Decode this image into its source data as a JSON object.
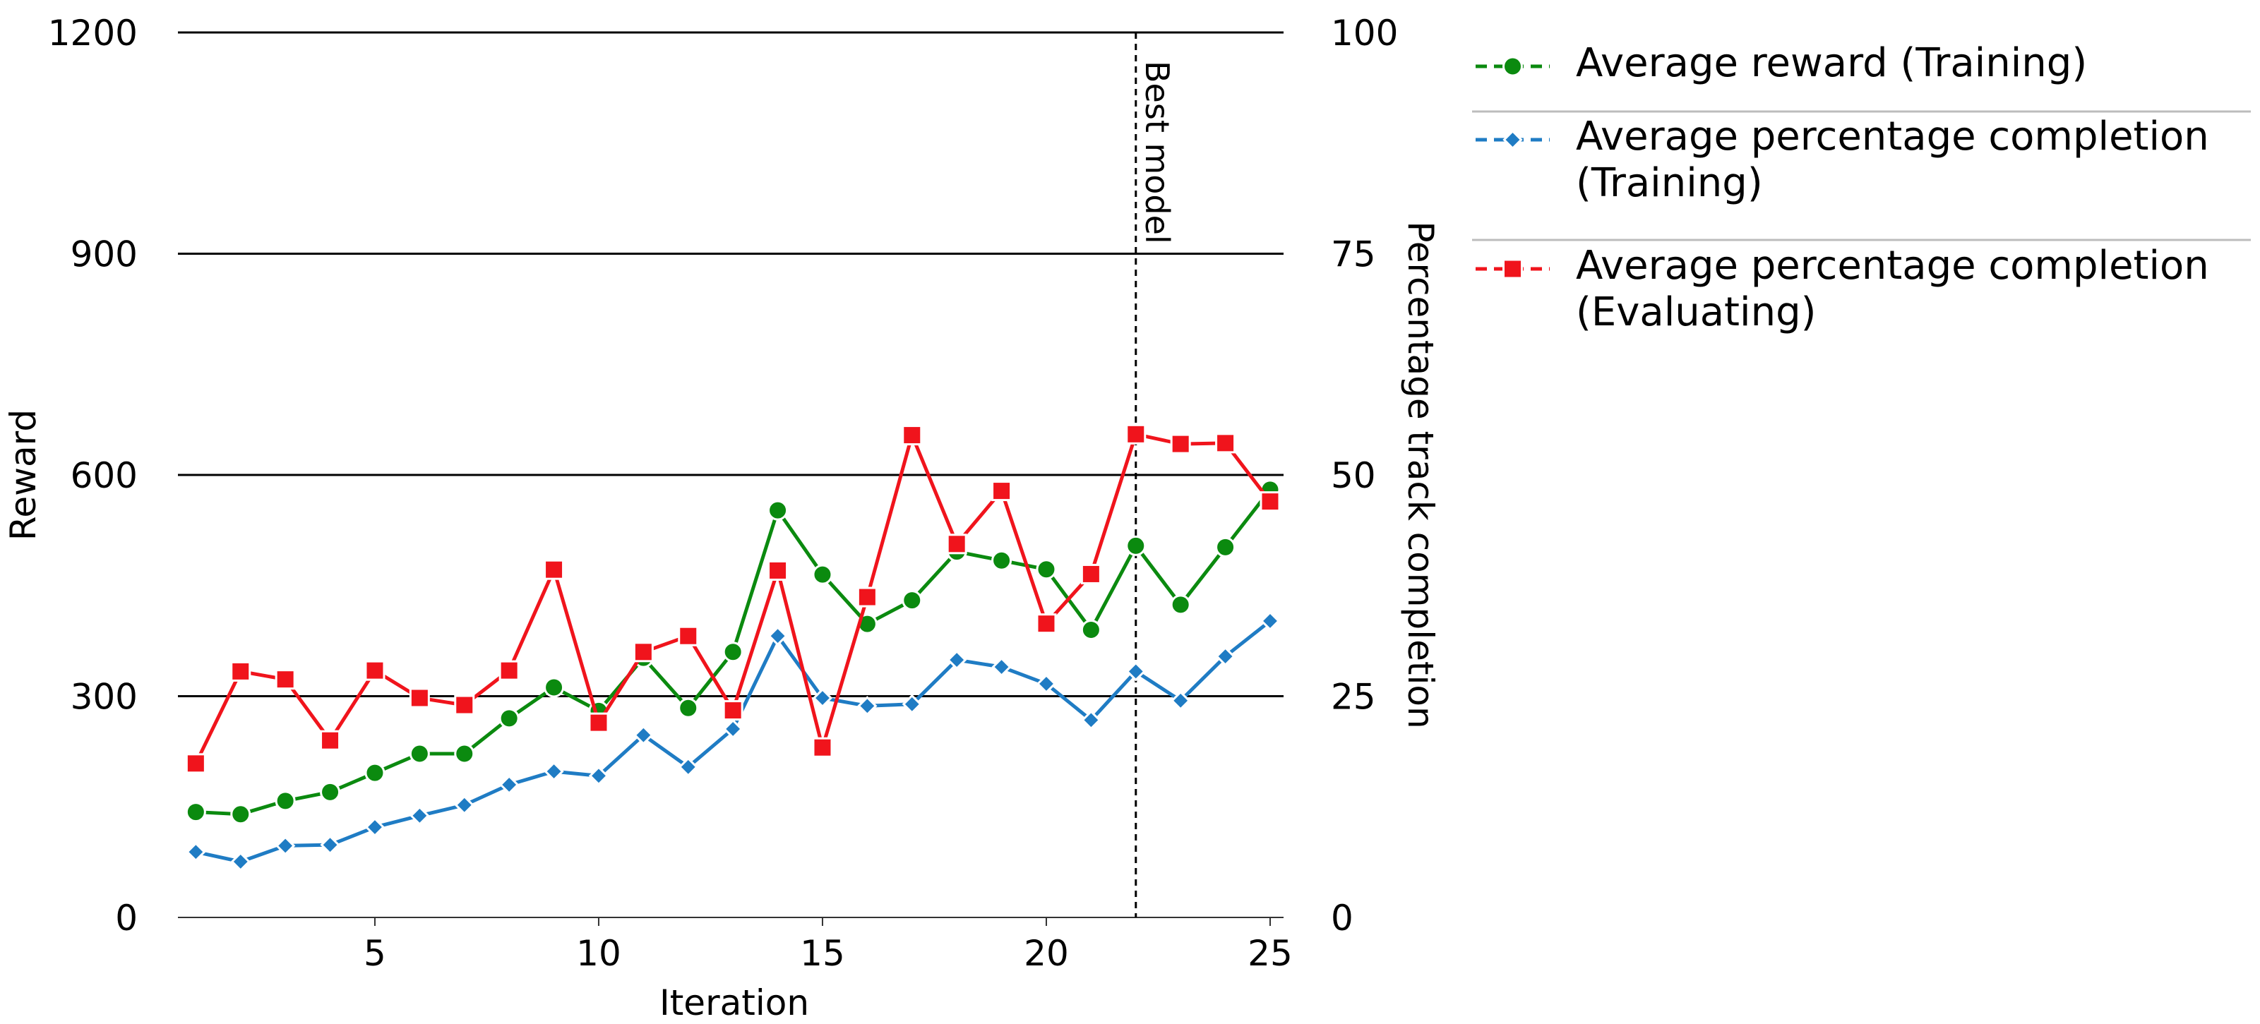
{
  "chart_data": {
    "type": "line",
    "title": "",
    "xlabel": "Iteration",
    "ylabel": "Reward",
    "y2label": "Percentage track completion",
    "xlim": [
      0.6,
      25.3
    ],
    "ylim": [
      0,
      1200
    ],
    "y2lim": [
      0,
      100
    ],
    "xticks": [
      5,
      10,
      15,
      20,
      25
    ],
    "yticks": [
      0,
      300,
      600,
      900,
      1200
    ],
    "y2ticks": [
      0,
      25,
      50,
      75,
      100
    ],
    "grid": "horizontal",
    "legend_position": "right",
    "x": [
      1,
      2,
      3,
      4,
      5,
      6,
      7,
      8,
      9,
      10,
      11,
      12,
      13,
      14,
      15,
      16,
      17,
      18,
      19,
      20,
      21,
      22,
      23,
      24,
      25
    ],
    "series": [
      {
        "name": "Average reward (Training)",
        "axis": "left",
        "color": "#0b8a0f",
        "marker": "circle",
        "values": [
          143,
          140,
          158,
          170,
          196,
          222,
          222,
          270,
          312,
          280,
          352,
          284,
          360,
          552,
          465,
          398,
          430,
          496,
          484,
          472,
          390,
          504,
          424,
          502,
          580
        ]
      },
      {
        "name": "Average percentage completion (Training)",
        "axis": "right",
        "color": "#1f7cc4",
        "marker": "diamond",
        "values": [
          7.4,
          6.3,
          8.1,
          8.2,
          10.2,
          11.5,
          12.7,
          15.0,
          16.5,
          16.0,
          20.6,
          17.0,
          21.3,
          31.8,
          24.8,
          23.9,
          24.1,
          29.1,
          28.3,
          26.4,
          22.3,
          27.8,
          24.5,
          29.5,
          33.5
        ]
      },
      {
        "name": "Average percentage completion (Evaluating)",
        "axis": "right",
        "color": "#f0141c",
        "marker": "square",
        "values": [
          17.4,
          27.8,
          26.9,
          20.0,
          27.9,
          24.8,
          24.0,
          27.9,
          39.3,
          22.0,
          30.0,
          31.8,
          23.4,
          39.2,
          19.2,
          36.2,
          54.5,
          42.2,
          48.2,
          33.2,
          38.8,
          54.6,
          53.5,
          53.6,
          47.0
        ]
      }
    ],
    "annotations": [
      {
        "type": "vertical-line",
        "x": 22,
        "label": "Best model",
        "style": "dashed"
      }
    ]
  }
}
